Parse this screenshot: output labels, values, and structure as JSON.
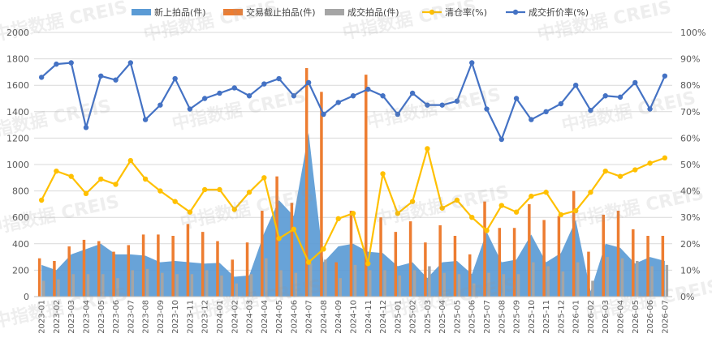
{
  "watermark": "中指数据 CREIS",
  "chart_data": {
    "type": "bar",
    "categories": [
      "2023-01",
      "2023-02",
      "2023-03",
      "2023-04",
      "2023-05",
      "2023-06",
      "2023-07",
      "2023-08",
      "2023-09",
      "2023-10",
      "2023-11",
      "2023-12",
      "2024-01",
      "2024-02",
      "2024-03",
      "2024-04",
      "2024-05",
      "2024-06",
      "2024-07",
      "2024-08",
      "2024-09",
      "2024-10",
      "2024-11",
      "2024-12",
      "2025-01",
      "2025-02",
      "2025-03",
      "2025-04",
      "2025-05",
      "2025-06",
      "2025-07",
      "2025-08",
      "2025-09",
      "2025-10",
      "2025-11",
      "2025-12",
      "2026-01",
      "2026-02",
      "2026-03",
      "2026-04",
      "2026-05",
      "2026-06",
      "2026-07"
    ],
    "ylim_left": [
      0,
      2000
    ],
    "ylim_right": [
      0,
      100
    ],
    "left_ticks": [
      "0",
      "200",
      "400",
      "600",
      "800",
      "1000",
      "1200",
      "1400",
      "1600",
      "1800",
      "2000"
    ],
    "right_ticks": [
      "0%",
      "10%",
      "20%",
      "30%",
      "40%",
      "50%",
      "60%",
      "70%",
      "80%",
      "90%",
      "100%"
    ],
    "grid": "horizontal",
    "legend_position": "top",
    "series": [
      {
        "name": "新上拍品(件)",
        "kind": "area",
        "axis": "left",
        "color": "#5b9bd5",
        "values": [
          240,
          200,
          320,
          360,
          400,
          320,
          320,
          310,
          260,
          270,
          260,
          250,
          255,
          150,
          160,
          480,
          730,
          610,
          1240,
          260,
          380,
          400,
          340,
          330,
          230,
          260,
          140,
          260,
          270,
          170,
          490,
          260,
          280,
          470,
          260,
          330,
          580,
          40,
          400,
          370,
          250,
          300,
          270
        ]
      },
      {
        "name": "交易截止拍品(件)",
        "kind": "bar",
        "axis": "left",
        "color": "#ed7d31",
        "values": [
          290,
          270,
          380,
          430,
          420,
          340,
          390,
          470,
          470,
          460,
          550,
          490,
          420,
          280,
          410,
          650,
          910,
          710,
          1730,
          1550,
          260,
          650,
          1680,
          600,
          490,
          570,
          410,
          540,
          460,
          320,
          720,
          520,
          520,
          700,
          580,
          610,
          800,
          340,
          620,
          650,
          510,
          460,
          460
        ]
      },
      {
        "name": "成交拍品(件)",
        "kind": "bar",
        "axis": "left",
        "color": "#a5a5a5",
        "values": [
          120,
          130,
          170,
          170,
          170,
          140,
          200,
          210,
          180,
          170,
          170,
          200,
          160,
          100,
          170,
          290,
          200,
          180,
          250,
          280,
          140,
          240,
          200,
          200,
          160,
          200,
          230,
          180,
          170,
          100,
          180,
          170,
          170,
          260,
          230,
          190,
          260,
          120,
          300,
          290,
          270,
          230,
          240
        ]
      },
      {
        "name": "清仓率(%)",
        "kind": "line",
        "axis": "right",
        "color": "#ffc000",
        "values": [
          36.5,
          47.5,
          45.5,
          39.0,
          44.5,
          42.5,
          51.5,
          44.5,
          40.0,
          36.0,
          32.0,
          40.5,
          40.5,
          33.0,
          39.5,
          45.0,
          22.0,
          25.5,
          13.0,
          18.0,
          29.5,
          31.5,
          12.5,
          46.5,
          31.5,
          36.0,
          56.0,
          33.5,
          36.5,
          30.0,
          25.0,
          34.5,
          32.0,
          38.0,
          39.5,
          31.0,
          32.5,
          39.5,
          47.5,
          45.5,
          48.0,
          50.5,
          52.5
        ]
      },
      {
        "name": "成交折价率(%)",
        "kind": "line",
        "axis": "right",
        "color": "#4472c4",
        "values": [
          83.0,
          88.0,
          88.5,
          64.0,
          83.5,
          82.0,
          88.5,
          67.0,
          72.5,
          82.5,
          71.0,
          75.0,
          77.0,
          79.0,
          76.0,
          80.5,
          82.5,
          76.0,
          81.0,
          69.0,
          73.5,
          76.0,
          78.5,
          76.0,
          69.0,
          77.0,
          72.5,
          72.5,
          74.0,
          88.5,
          71.0,
          59.5,
          75.0,
          67.0,
          70.0,
          73.0,
          80.0,
          70.5,
          76.0,
          75.5,
          81.0,
          71.0,
          83.5
        ]
      }
    ]
  }
}
